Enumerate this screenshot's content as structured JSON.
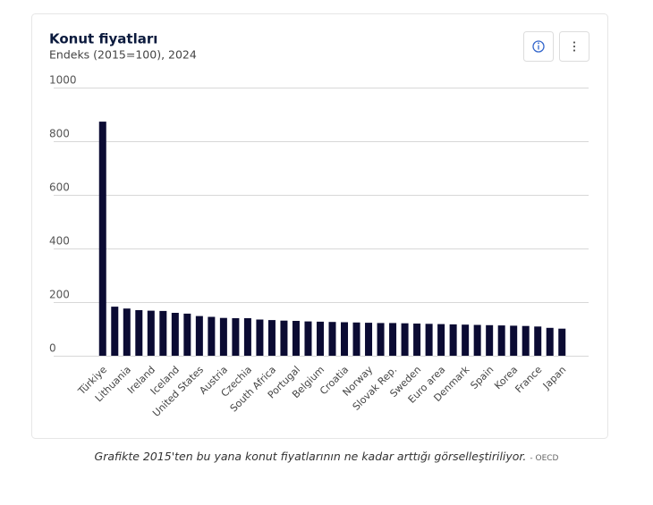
{
  "chart_data": {
    "type": "bar",
    "title": "Konut fiyatları",
    "subtitle": "Endeks (2015=100), 2024",
    "categories": [
      "Türkiye",
      null,
      "Lithuania",
      null,
      "Ireland",
      null,
      "Iceland",
      null,
      "United States",
      null,
      "Austria",
      null,
      "Czechia",
      null,
      "South Africa",
      null,
      "Portugal",
      null,
      "Belgium",
      null,
      "Croatia",
      null,
      "Norway",
      null,
      "Slovak Rep.",
      null,
      "Sweden",
      null,
      "Euro area",
      null,
      "Denmark",
      null,
      "Spain",
      null,
      "Korea",
      null,
      "France",
      null,
      "Japan"
    ],
    "values": [
      873,
      183,
      176,
      170,
      168,
      167,
      160,
      157,
      148,
      145,
      141,
      140,
      140,
      135,
      133,
      131,
      130,
      128,
      127,
      126,
      125,
      124,
      123,
      122,
      122,
      121,
      120,
      119,
      118,
      117,
      116,
      115,
      114,
      113,
      112,
      111,
      109,
      104,
      101
    ],
    "color": "#0b0b33",
    "ylim": [
      0,
      1000
    ],
    "yticks": [
      0,
      200,
      400,
      600,
      800,
      1000
    ],
    "grid": true
  },
  "caption": {
    "text": "Grafikte 2015'ten bu yana konut fiyatlarının ne kadar arttığı görselleştiriliyor.",
    "source": "- OECD"
  }
}
